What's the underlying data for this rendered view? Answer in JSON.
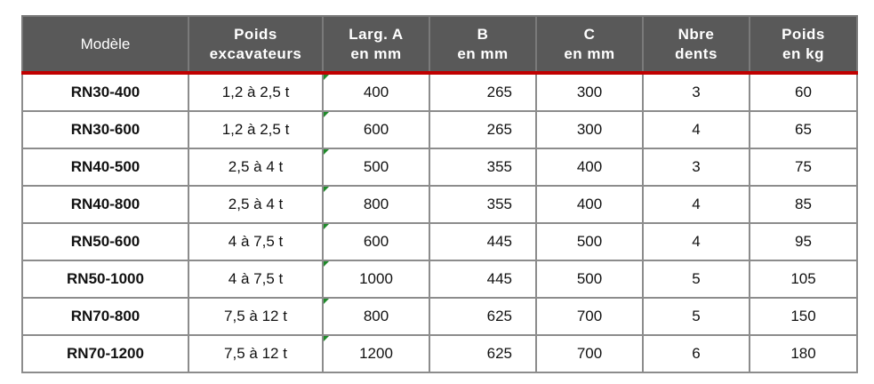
{
  "headers": [
    {
      "line1": "Modèle",
      "line2": ""
    },
    {
      "line1": "Poids",
      "line2": "excavateurs"
    },
    {
      "line1": "Larg. A",
      "line2": "en mm"
    },
    {
      "line1": "B",
      "line2": "en mm"
    },
    {
      "line1": "C",
      "line2": "en mm"
    },
    {
      "line1": "Nbre",
      "line2": "dents"
    },
    {
      "line1": "Poids",
      "line2": "en kg"
    }
  ],
  "rows": [
    [
      "RN30-400",
      "1,2 à 2,5 t",
      "400",
      "265",
      "300",
      "3",
      "60"
    ],
    [
      "RN30-600",
      "1,2 à 2,5 t",
      "600",
      "265",
      "300",
      "4",
      "65"
    ],
    [
      "RN40-500",
      "2,5 à 4 t",
      "500",
      "355",
      "400",
      "3",
      "75"
    ],
    [
      "RN40-800",
      "2,5 à 4 t",
      "800",
      "355",
      "400",
      "4",
      "85"
    ],
    [
      "RN50-600",
      "4 à 7,5 t",
      "600",
      "445",
      "500",
      "4",
      "95"
    ],
    [
      "RN50-1000",
      "4 à 7,5 t",
      "1000",
      "445",
      "500",
      "5",
      "105"
    ],
    [
      "RN70-800",
      "7,5 à 12 t",
      "800",
      "625",
      "700",
      "5",
      "150"
    ],
    [
      "RN70-1200",
      "7,5 à 12 t",
      "1200",
      "625",
      "700",
      "6",
      "180"
    ]
  ],
  "colors": {
    "header_bg": "#595959",
    "accent_line": "#c00000",
    "cell_marker": "#1f8a2a"
  }
}
